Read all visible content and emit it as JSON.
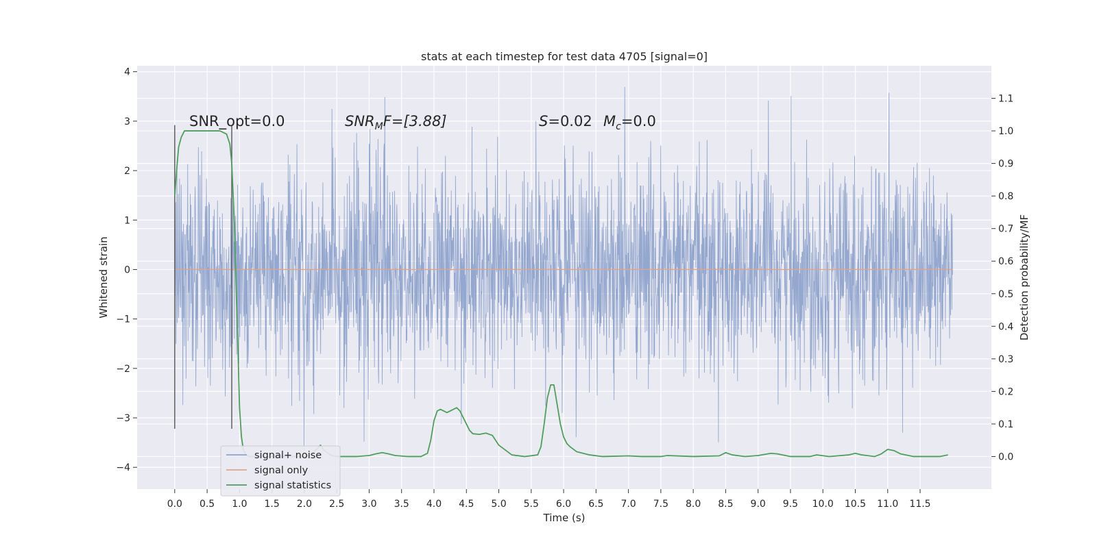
{
  "chart_data": {
    "type": "line",
    "title": "stats at each timestep for test data 4705 [signal=0]",
    "xlabel": "Time (s)",
    "ylabel": "Whitened strain",
    "y2label": "Detection probability/MF",
    "xlim": [
      -0.58,
      12.6
    ],
    "ylim": [
      -4.44,
      4.12
    ],
    "y2lim": [
      -0.1,
      1.2
    ],
    "x_ticks": [
      "0.0",
      "0.5",
      "1.0",
      "1.5",
      "2.0",
      "2.5",
      "3.0",
      "3.5",
      "4.0",
      "4.5",
      "5.0",
      "5.5",
      "6.0",
      "6.5",
      "7.0",
      "7.5",
      "8.0",
      "8.5",
      "9.0",
      "9.5",
      "10.0",
      "10.5",
      "11.0",
      "11.5"
    ],
    "y_ticks": [
      "4",
      "3",
      "2",
      "1",
      "0",
      "−1",
      "−2",
      "−3",
      "−4"
    ],
    "y2_ticks": [
      "0.0",
      "0.1",
      "0.2",
      "0.3",
      "0.4",
      "0.5",
      "0.6",
      "0.7",
      "0.8",
      "0.9",
      "1.0",
      "1.1"
    ],
    "grid": true,
    "legend_position": "lower-left",
    "annotations": {
      "snr_opt": "SNR_opt=0.0",
      "snr_mf_prefix": "SNR",
      "snr_mf_sub": "M",
      "snr_mf_suffix": "F=[3.88]",
      "s_label": "S",
      "s_value": "=0.02",
      "mc_label": "M",
      "mc_sub": "c",
      "mc_value": "=0.0"
    },
    "series": [
      {
        "name": "signal+ noise",
        "color": "#8fa3cc",
        "axis": "left",
        "description": "whitened noise, amplitude roughly ±2 with peaks to about ±4",
        "x_range": [
          0.0,
          12.0
        ]
      },
      {
        "name": "signal only",
        "color": "#e0a589",
        "axis": "left",
        "x": [
          0.0,
          12.0
        ],
        "y": [
          0.0,
          0.0
        ]
      },
      {
        "name": "signal statistics",
        "color": "#4e9f5b",
        "axis": "right",
        "x": [
          0.0,
          0.03,
          0.06,
          0.1,
          0.15,
          0.2,
          0.25,
          0.3,
          0.4,
          0.5,
          0.6,
          0.7,
          0.8,
          0.85,
          0.88,
          0.92,
          0.95,
          0.98,
          1.0,
          1.03,
          1.06,
          1.1,
          1.15,
          1.2,
          1.3,
          1.5,
          1.8,
          2.0,
          2.1,
          2.2,
          2.25,
          2.3,
          2.4,
          2.5,
          2.8,
          3.0,
          3.1,
          3.2,
          3.3,
          3.4,
          3.6,
          3.8,
          3.9,
          3.95,
          4.0,
          4.05,
          4.1,
          4.2,
          4.25,
          4.3,
          4.35,
          4.4,
          4.5,
          4.55,
          4.6,
          4.7,
          4.8,
          4.9,
          5.0,
          5.2,
          5.4,
          5.6,
          5.65,
          5.7,
          5.75,
          5.8,
          5.85,
          5.9,
          5.95,
          6.0,
          6.05,
          6.1,
          6.2,
          6.4,
          6.6,
          7.0,
          7.2,
          7.5,
          7.6,
          8.0,
          8.4,
          8.5,
          8.6,
          8.8,
          9.0,
          9.2,
          9.3,
          9.5,
          9.8,
          9.9,
          10.1,
          10.4,
          10.5,
          10.6,
          10.8,
          10.9,
          11.0,
          11.1,
          11.2,
          11.4,
          11.6,
          11.8,
          11.93
        ],
        "y": [
          0.8,
          0.88,
          0.95,
          0.98,
          1.0,
          1.0,
          1.0,
          1.0,
          1.0,
          1.0,
          1.0,
          1.0,
          0.99,
          0.96,
          0.9,
          0.72,
          0.5,
          0.3,
          0.15,
          0.06,
          0.02,
          0.005,
          0.0,
          0.0,
          0.0,
          0.0,
          0.0,
          0.0,
          0.005,
          0.025,
          0.035,
          0.02,
          0.005,
          0.0,
          0.0,
          0.003,
          0.008,
          0.012,
          0.008,
          0.003,
          0.0,
          0.0,
          0.01,
          0.05,
          0.11,
          0.14,
          0.145,
          0.135,
          0.14,
          0.145,
          0.15,
          0.14,
          0.1,
          0.08,
          0.07,
          0.068,
          0.072,
          0.065,
          0.035,
          0.005,
          0.0,
          0.005,
          0.03,
          0.1,
          0.18,
          0.22,
          0.22,
          0.16,
          0.1,
          0.06,
          0.04,
          0.03,
          0.015,
          0.005,
          0.0,
          0.002,
          0.0,
          0.0,
          0.003,
          0.0,
          0.002,
          0.012,
          0.005,
          0.0,
          0.003,
          0.01,
          0.008,
          0.0,
          0.0,
          0.005,
          0.0,
          0.005,
          0.01,
          0.005,
          0.0,
          0.008,
          0.022,
          0.018,
          0.008,
          0.0,
          0.0,
          0.0,
          0.005
        ]
      }
    ],
    "vertical_markers": [
      {
        "x": 0.0,
        "y": [
          -3.22,
          2.92
        ],
        "color": "#555555"
      },
      {
        "x": 0.88,
        "y": [
          -3.22,
          2.92
        ],
        "color": "#555555"
      }
    ]
  }
}
